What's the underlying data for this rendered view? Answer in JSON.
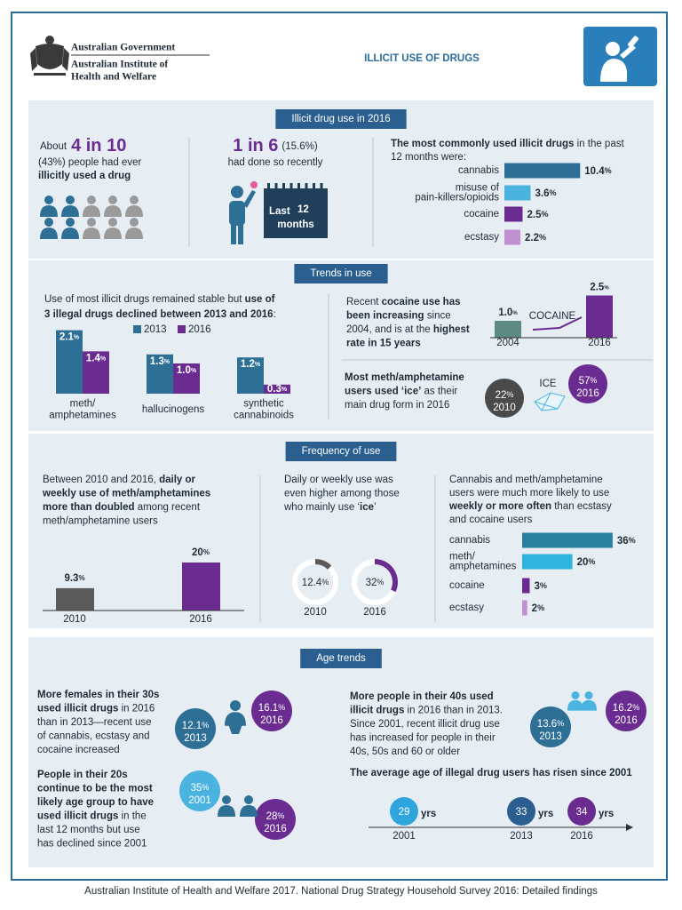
{
  "header": {
    "org": [
      "Australian Government",
      "Australian Institute of",
      "Health and Welfare"
    ],
    "title": "ILLICIT USE OF DRUGS"
  },
  "s1": {
    "heading": "Illicit drug use in 2016",
    "ever": {
      "lead": "About",
      "big": "4 in 10",
      "text": [
        [
          "(43%) people had ever"
        ],
        [
          {
            "text": "illicitly used a drug",
            "bold": true
          }
        ]
      ]
    },
    "recent": {
      "big": "1 in 6",
      "small": "(15.6%)",
      "text": "had done so recently",
      "calendar": {
        "lead": "Last",
        "number": "12",
        "unit": "months"
      }
    },
    "common": {
      "intro": [
        [
          {
            "text": "The most commonly used illicit drugs",
            "bold": true
          },
          " in the past"
        ],
        [
          "12 months were:"
        ]
      ],
      "categories": [
        [
          "cannabis"
        ],
        [
          "misuse of",
          "pain-killers/opioids"
        ],
        [
          "cocaine"
        ],
        [
          "ecstasy"
        ]
      ],
      "values": [
        10.4,
        3.6,
        2.5,
        2.2
      ],
      "unit": "%",
      "colors": [
        "#2e6f96",
        "#4ab3e0",
        "#6a2c91",
        "#c08fd0"
      ]
    }
  },
  "s2": {
    "heading": "Trends in use",
    "decline": {
      "text": [
        [
          "Use of most illicit drugs remained stable but ",
          {
            "text": "use of",
            "bold": true
          }
        ],
        [
          {
            "text": "3 illegal drugs declined between 2013 and 2016",
            "bold": true
          },
          ":"
        ]
      ],
      "categories": [
        [
          "meth/",
          "amphetamines"
        ],
        [
          "hallucinogens"
        ],
        [
          "synthetic",
          "cannabinoids"
        ]
      ],
      "unit": "%",
      "series": [
        {
          "name": "2013",
          "color": "#2e6f96",
          "values": [
            2.1,
            1.3,
            1.2
          ]
        },
        {
          "name": "2016",
          "color": "#6a2c91",
          "values": [
            1.4,
            1.0,
            0.3
          ],
          "value_labels": [
            "1.4",
            "1.0",
            "0.3"
          ]
        }
      ]
    },
    "cocaine": {
      "text": [
        [
          "Recent ",
          {
            "text": "cocaine use has",
            "bold": true
          }
        ],
        [
          {
            "text": "been increasing",
            "bold": true
          },
          " since"
        ],
        [
          "2004, and is at the ",
          {
            "text": "highest",
            "bold": true
          }
        ],
        [
          {
            "text": "rate in 15 years",
            "bold": true
          }
        ]
      ],
      "annotation": "COCAINE",
      "categories": [
        "2004",
        "2016"
      ],
      "values": [
        1.0,
        2.5
      ],
      "value_labels": [
        "1.0",
        "2.5"
      ],
      "unit": "%",
      "colors": [
        "#5e8a84",
        "#6a2c91"
      ]
    },
    "ice": {
      "text": [
        [
          {
            "text": "Most meth/amphetamine",
            "bold": true
          }
        ],
        [
          {
            "text": "users used ‘ice’",
            "bold": true
          },
          " as their"
        ],
        [
          "main drug form in 2016"
        ]
      ],
      "annotation": "ICE",
      "categories": [
        "2010",
        "2016"
      ],
      "values": [
        22,
        57
      ],
      "unit": "%",
      "colors": [
        "#4a4a4a",
        "#6a2c91"
      ]
    }
  },
  "s3": {
    "heading": "Frequency of use",
    "doubled": {
      "text": [
        [
          "Between 2010 and 2016, ",
          {
            "text": "daily or",
            "bold": true
          }
        ],
        [
          {
            "text": "weekly use of meth/amphetamines",
            "bold": true
          }
        ],
        [
          {
            "text": "more than doubled",
            "bold": true
          },
          " among recent"
        ],
        [
          "meth/amphetamine users"
        ]
      ],
      "categories": [
        "2010",
        "2016"
      ],
      "values": [
        9.3,
        20
      ],
      "unit": "%",
      "colors": [
        "#5a5a5a",
        "#6a2c91"
      ]
    },
    "ice": {
      "text": [
        [
          "Daily or weekly use was"
        ],
        [
          "even higher among those"
        ],
        [
          "who mainly use ‘",
          {
            "text": "ice",
            "bold": true
          },
          "’"
        ]
      ],
      "categories": [
        "2010",
        "2016"
      ],
      "values": [
        12.4,
        32
      ],
      "unit": "%",
      "colors": [
        "#5a5a5a",
        "#6a2c91"
      ]
    },
    "often": {
      "text": [
        [
          "Cannabis and meth/amphetamine"
        ],
        [
          "users were much more likely to use"
        ],
        [
          {
            "text": "weekly or more often",
            "bold": true
          },
          " than ecstasy"
        ],
        [
          "and cocaine users"
        ]
      ],
      "categories": [
        [
          "cannabis"
        ],
        [
          "meth/",
          "amphetamines"
        ],
        [
          "cocaine"
        ],
        [
          "ecstasy"
        ]
      ],
      "values": [
        36,
        20,
        3,
        2
      ],
      "unit": "%",
      "colors": [
        "#2a7f9c",
        "#2fb4e0",
        "#6a2c91",
        "#c08fd0"
      ]
    }
  },
  "s4": {
    "heading": "Age trends",
    "females": {
      "text": [
        [
          {
            "text": "More females in their 30s",
            "bold": true
          }
        ],
        [
          {
            "text": "used illicit drugs",
            "bold": true
          },
          " in 2016"
        ],
        [
          "than in 2013—recent use"
        ],
        [
          "of cannabis, ecstasy and"
        ],
        [
          "cocaine increased"
        ]
      ],
      "categories": [
        "2013",
        "2016"
      ],
      "values": [
        12.1,
        16.1
      ],
      "unit": "%",
      "colors": [
        "#2e6f96",
        "#6a2c91"
      ]
    },
    "twenties": {
      "text": [
        [
          {
            "text": "People in their 20s",
            "bold": true
          }
        ],
        [
          {
            "text": "continue to be the most",
            "bold": true
          }
        ],
        [
          {
            "text": "likely age group to have",
            "bold": true
          }
        ],
        [
          {
            "text": "used illicit drugs",
            "bold": true
          },
          " in the"
        ],
        [
          "last 12 months but use"
        ],
        [
          "has declined since 2001"
        ]
      ],
      "categories": [
        "2001",
        "2016"
      ],
      "values": [
        35,
        28
      ],
      "unit": "%",
      "colors": [
        "#4ab3e0",
        "#6a2c91"
      ]
    },
    "forties": {
      "text": [
        [
          {
            "text": "More people in their 40s used",
            "bold": true
          }
        ],
        [
          {
            "text": "illicit drugs",
            "bold": true
          },
          " in 2016 than in 2013."
        ],
        [
          "Since 2001, recent illicit drug use"
        ],
        [
          "has increased for people in their"
        ],
        [
          "40s, 50s and 60 or older"
        ]
      ],
      "categories": [
        "2013",
        "2016"
      ],
      "values": [
        13.6,
        16.2
      ],
      "unit": "%",
      "colors": [
        "#2e6f96",
        "#6a2c91"
      ]
    },
    "average": {
      "text": [
        [
          {
            "text": "The average age of illegal drug users has risen since 2001",
            "bold": true
          }
        ]
      ],
      "categories": [
        "2001",
        "2013",
        "2016"
      ],
      "values": [
        29,
        33,
        34
      ],
      "unit": "yrs",
      "colors": [
        "#2ea6dd",
        "#2a5f8f",
        "#6a2c91"
      ]
    }
  },
  "footer": "Australian Institute of Health and Welfare 2017. National Drug Strategy Household Survey 2016: Detailed findings"
}
